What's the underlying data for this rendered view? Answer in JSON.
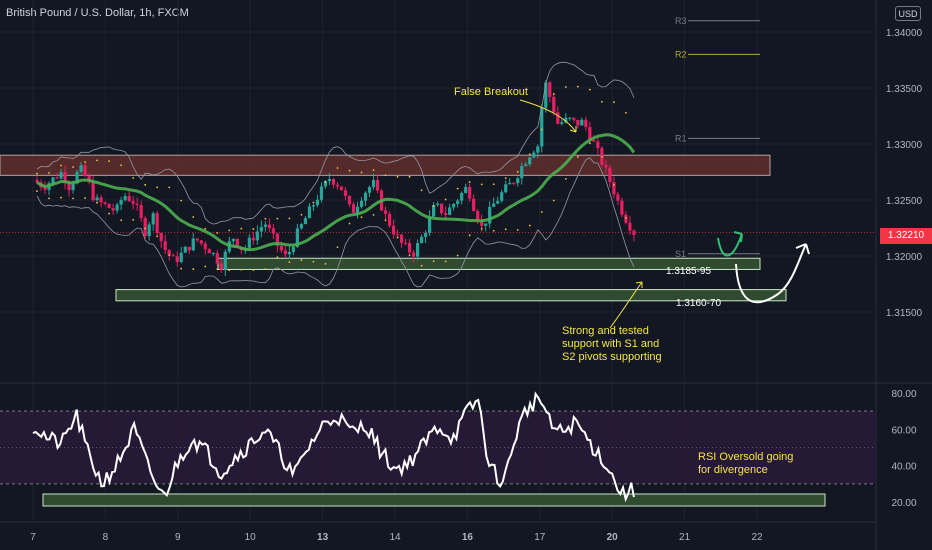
{
  "header": {
    "symbol_title": "British Pound / U.S. Dollar, 1h, FXCM",
    "currency_badge": "USD",
    "current_price": "1.32210"
  },
  "colors": {
    "background": "#131722",
    "bull": "#26a69a",
    "bear": "#e91e63",
    "ma": "#4caf50",
    "annotation": "#f5e642",
    "resistance_zone": "#5d2d2d",
    "support_zone": "#2f4a2f",
    "rsi_band": "#2a1a3a",
    "rsi_line": "#ffffff",
    "pivot": "#787b86",
    "pivot_r2": "#b5a642"
  },
  "chart_data": [
    {
      "type": "candlestick",
      "title": "British Pound / U.S. Dollar, 1h, FXCM",
      "y_ticks": [
        "1.34000",
        "1.33500",
        "1.33000",
        "1.32500",
        "1.32000",
        "1.31500"
      ],
      "ylim": [
        1.3125,
        1.3425
      ],
      "x_ticks": [
        "7",
        "8",
        "9",
        "10",
        "13",
        "14",
        "16",
        "17",
        "20",
        "21",
        "22"
      ],
      "x_tick_positions": [
        0,
        1,
        2,
        3,
        4,
        5,
        6,
        7,
        8,
        9,
        10
      ],
      "price_path": [
        [
          0.0,
          1.3268
        ],
        [
          0.15,
          1.3262
        ],
        [
          0.3,
          1.327
        ],
        [
          0.4,
          1.3275
        ],
        [
          0.5,
          1.3262
        ],
        [
          0.65,
          1.3278
        ],
        [
          0.75,
          1.3268
        ],
        [
          0.85,
          1.325
        ],
        [
          1.0,
          1.3245
        ],
        [
          1.15,
          1.324
        ],
        [
          1.25,
          1.3255
        ],
        [
          1.4,
          1.3248
        ],
        [
          1.55,
          1.3222
        ],
        [
          1.65,
          1.3238
        ],
        [
          1.8,
          1.3208
        ],
        [
          1.95,
          1.3195
        ],
        [
          2.1,
          1.3205
        ],
        [
          2.25,
          1.3215
        ],
        [
          2.45,
          1.3205
        ],
        [
          2.6,
          1.3192
        ],
        [
          2.75,
          1.3218
        ],
        [
          2.9,
          1.3205
        ],
        [
          3.05,
          1.3218
        ],
        [
          3.2,
          1.323
        ],
        [
          3.35,
          1.3212
        ],
        [
          3.5,
          1.3198
        ],
        [
          3.65,
          1.322
        ],
        [
          3.8,
          1.3238
        ],
        [
          3.95,
          1.3255
        ],
        [
          4.1,
          1.327
        ],
        [
          4.25,
          1.3262
        ],
        [
          4.4,
          1.3238
        ],
        [
          4.55,
          1.3255
        ],
        [
          4.7,
          1.3265
        ],
        [
          4.85,
          1.3238
        ],
        [
          5.0,
          1.322
        ],
        [
          5.1,
          1.321
        ],
        [
          5.25,
          1.3202
        ],
        [
          5.4,
          1.322
        ],
        [
          5.55,
          1.3245
        ],
        [
          5.7,
          1.3238
        ],
        [
          5.85,
          1.325
        ],
        [
          6.0,
          1.3262
        ],
        [
          6.1,
          1.3242
        ],
        [
          6.2,
          1.3225
        ],
        [
          6.35,
          1.3245
        ],
        [
          6.5,
          1.3258
        ],
        [
          6.65,
          1.3268
        ],
        [
          6.75,
          1.328
        ],
        [
          6.9,
          1.3295
        ],
        [
          7.0,
          1.33
        ],
        [
          7.05,
          1.336
        ],
        [
          7.15,
          1.334
        ],
        [
          7.25,
          1.3318
        ],
        [
          7.4,
          1.3322
        ],
        [
          7.5,
          1.3318
        ],
        [
          7.6,
          1.332
        ],
        [
          7.75,
          1.33
        ],
        [
          7.85,
          1.3285
        ],
        [
          8.0,
          1.3262
        ],
        [
          8.1,
          1.3245
        ],
        [
          8.2,
          1.3232
        ],
        [
          8.3,
          1.3221
        ]
      ],
      "annotations": [
        "False Breakout",
        "1.3185-95",
        "1.3160-70",
        "Strong and tested support with S1 and S2 pivots supporting"
      ],
      "pivot_labels": [
        "R3",
        "R2",
        "R1",
        "S1"
      ],
      "pivot_levels": [
        1.341,
        1.338,
        1.3305,
        1.3202
      ],
      "resistance_zone": [
        1.3272,
        1.329
      ],
      "support_zones": [
        [
          1.3188,
          1.3198
        ],
        [
          1.316,
          1.317
        ]
      ],
      "grid": true
    },
    {
      "type": "line",
      "title": "RSI",
      "y_ticks": [
        "80.00",
        "60.00",
        "40.00",
        "20.00"
      ],
      "ylim": [
        10,
        90
      ],
      "band": [
        30,
        70
      ],
      "rsi_path": [
        [
          0.0,
          62
        ],
        [
          0.2,
          55
        ],
        [
          0.4,
          52
        ],
        [
          0.6,
          68
        ],
        [
          0.75,
          48
        ],
        [
          0.95,
          30
        ],
        [
          1.15,
          40
        ],
        [
          1.4,
          60
        ],
        [
          1.6,
          38
        ],
        [
          1.8,
          22
        ],
        [
          2.0,
          42
        ],
        [
          2.2,
          55
        ],
        [
          2.4,
          48
        ],
        [
          2.6,
          36
        ],
        [
          2.8,
          45
        ],
        [
          3.0,
          52
        ],
        [
          3.2,
          60
        ],
        [
          3.4,
          48
        ],
        [
          3.6,
          34
        ],
        [
          3.8,
          50
        ],
        [
          4.0,
          62
        ],
        [
          4.2,
          68
        ],
        [
          4.4,
          58
        ],
        [
          4.6,
          63
        ],
        [
          4.8,
          48
        ],
        [
          5.0,
          38
        ],
        [
          5.2,
          42
        ],
        [
          5.4,
          52
        ],
        [
          5.6,
          62
        ],
        [
          5.8,
          55
        ],
        [
          6.0,
          70
        ],
        [
          6.15,
          76
        ],
        [
          6.3,
          40
        ],
        [
          6.5,
          30
        ],
        [
          6.65,
          55
        ],
        [
          6.8,
          70
        ],
        [
          7.0,
          78
        ],
        [
          7.15,
          62
        ],
        [
          7.3,
          58
        ],
        [
          7.5,
          64
        ],
        [
          7.7,
          52
        ],
        [
          7.9,
          42
        ],
        [
          8.05,
          30
        ],
        [
          8.15,
          24
        ],
        [
          8.25,
          27
        ],
        [
          8.3,
          24
        ]
      ],
      "annotations": [
        "RSI Oversold going for divergence"
      ],
      "grid": true
    }
  ]
}
